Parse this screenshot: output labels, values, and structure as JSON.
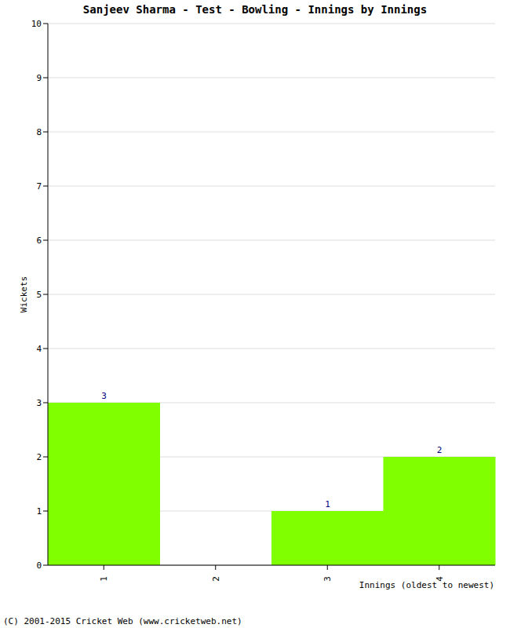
{
  "chart_data": {
    "type": "bar",
    "title": "Sanjeev Sharma - Test - Bowling - Innings by Innings",
    "x_label": "Innings (oldest to newest)",
    "y_label": "Wickets",
    "categories": [
      "1",
      "2",
      "3",
      "4"
    ],
    "values": [
      3,
      0,
      1,
      2
    ],
    "color": "#80ff00",
    "ylim": [
      0,
      10
    ],
    "yticks": [
      0,
      1,
      2,
      3,
      4,
      5,
      6,
      7,
      8,
      9,
      10
    ],
    "grid": true,
    "data_labels": true,
    "annotations": [
      "(C) 2001-2015 Cricket Web (www.cricketweb.net)"
    ]
  }
}
